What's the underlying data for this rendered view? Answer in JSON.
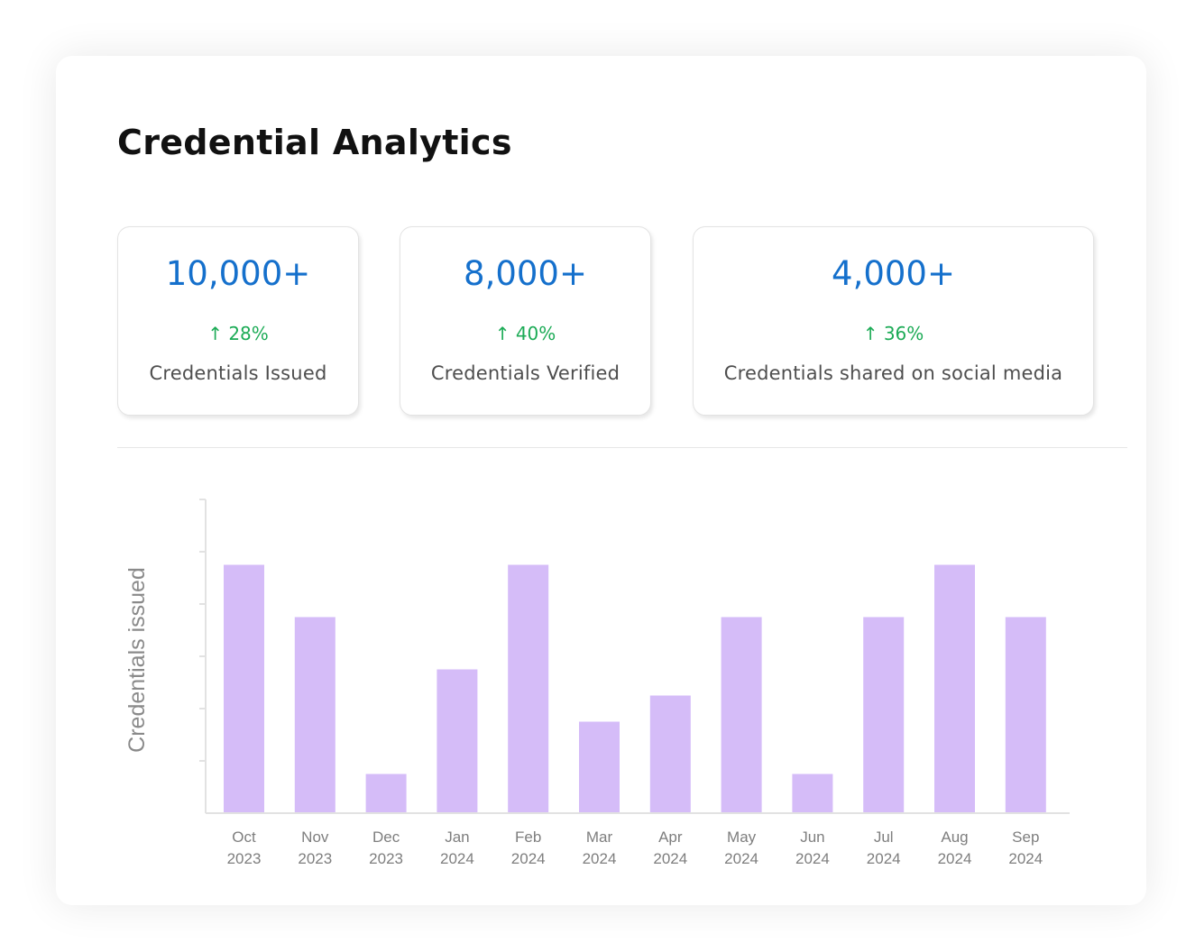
{
  "header": {
    "title": "Credential Analytics"
  },
  "stats": [
    {
      "value": "10,000+",
      "change": "↑ 28%",
      "label": "Credentials Issued"
    },
    {
      "value": "8,000+",
      "change": "↑ 40%",
      "label": "Credentials Verified"
    },
    {
      "value": "4,000+",
      "change": "↑ 36%",
      "label": "Credentials shared on social media"
    }
  ],
  "colors": {
    "value": "#1570cc",
    "change": "#1cab56",
    "bar": "#d5bcf8",
    "axis": "#e2e2e2"
  },
  "chart_data": {
    "type": "bar",
    "title": "",
    "xlabel": "",
    "ylabel": "Credentials issued",
    "categories": [
      [
        "Oct",
        "2023"
      ],
      [
        "Nov",
        "2023"
      ],
      [
        "Dec",
        "2023"
      ],
      [
        "Jan",
        "2024"
      ],
      [
        "Feb",
        "2024"
      ],
      [
        "Mar",
        "2024"
      ],
      [
        "Apr",
        "2024"
      ],
      [
        "May",
        "2024"
      ],
      [
        "Jun",
        "2024"
      ],
      [
        "Jul",
        "2024"
      ],
      [
        "Aug",
        "2024"
      ],
      [
        "Sep",
        "2024"
      ]
    ],
    "values": [
      4.75,
      3.75,
      0.75,
      2.75,
      4.75,
      1.75,
      2.25,
      3.75,
      0.75,
      3.75,
      4.75,
      3.75
    ],
    "ylim": [
      0,
      6
    ],
    "yticks": [
      0,
      1,
      2,
      3,
      4,
      5,
      6
    ],
    "ytick_labels_shown": false,
    "grid": false
  }
}
